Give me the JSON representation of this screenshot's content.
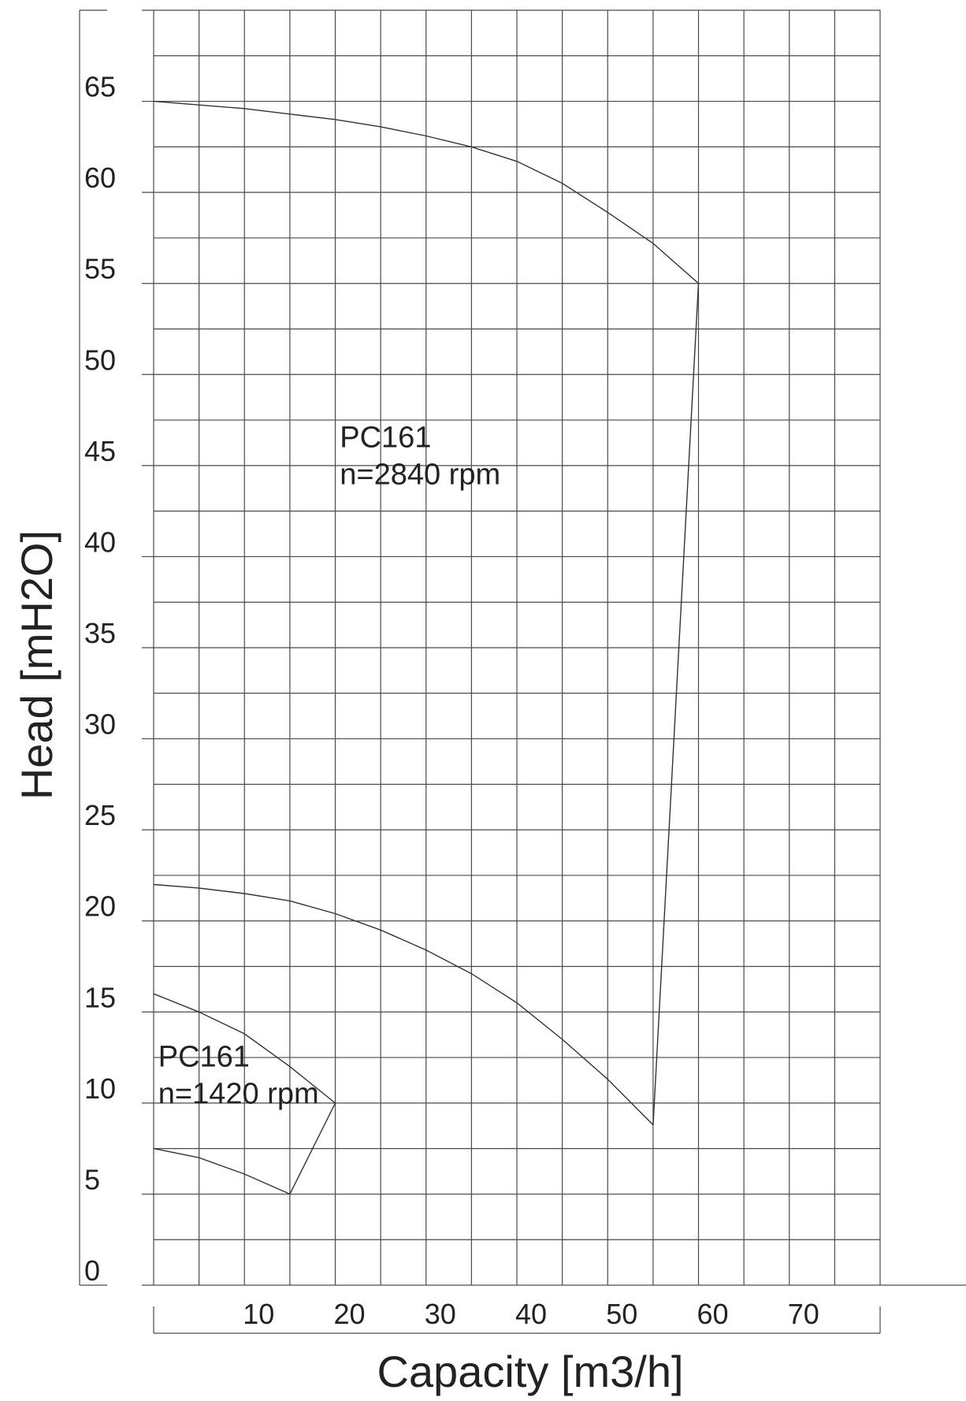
{
  "chart_data": {
    "type": "line",
    "title": "",
    "xlabel": "Capacity [m3/h]",
    "ylabel": "Head [mH2O]",
    "xlim": [
      0,
      80
    ],
    "ylim": [
      0,
      70
    ],
    "grid": true,
    "x_ticks": [
      10,
      20,
      30,
      40,
      50,
      60,
      70
    ],
    "y_ticks": [
      0,
      5,
      10,
      15,
      20,
      25,
      30,
      35,
      40,
      45,
      50,
      55,
      60,
      65
    ],
    "series": [
      {
        "points": [
          [
            0,
            65
          ],
          [
            5,
            64.8
          ],
          [
            10,
            64.6
          ],
          [
            15,
            64.3
          ],
          [
            20,
            64
          ],
          [
            25,
            63.6
          ],
          [
            30,
            63.1
          ],
          [
            35,
            62.5
          ],
          [
            40,
            61.7
          ],
          [
            45,
            60.5
          ],
          [
            50,
            58.9
          ],
          [
            55,
            57.2
          ],
          [
            60,
            55
          ],
          [
            55,
            8.8
          ],
          [
            50,
            11.3
          ],
          [
            45,
            13.5
          ],
          [
            40,
            15.5
          ],
          [
            35,
            17.1
          ],
          [
            30,
            18.4
          ],
          [
            25,
            19.5
          ],
          [
            20,
            20.4
          ],
          [
            15,
            21.1
          ],
          [
            10,
            21.5
          ],
          [
            5,
            21.8
          ],
          [
            0,
            22
          ]
        ]
      },
      {
        "points": [
          [
            0,
            16
          ],
          [
            5,
            15
          ],
          [
            10,
            13.8
          ],
          [
            15,
            12
          ],
          [
            20,
            10
          ],
          [
            15,
            5
          ],
          [
            10,
            6.1
          ],
          [
            5,
            7
          ],
          [
            0,
            7.5
          ]
        ]
      }
    ],
    "annotations": [
      {
        "lines": [
          "PC161",
          "n=2840 rpm"
        ],
        "x": 20.5,
        "y": 46
      },
      {
        "lines": [
          "PC161",
          "n=1420 rpm"
        ],
        "x": 0.5,
        "y": 12
      }
    ]
  }
}
